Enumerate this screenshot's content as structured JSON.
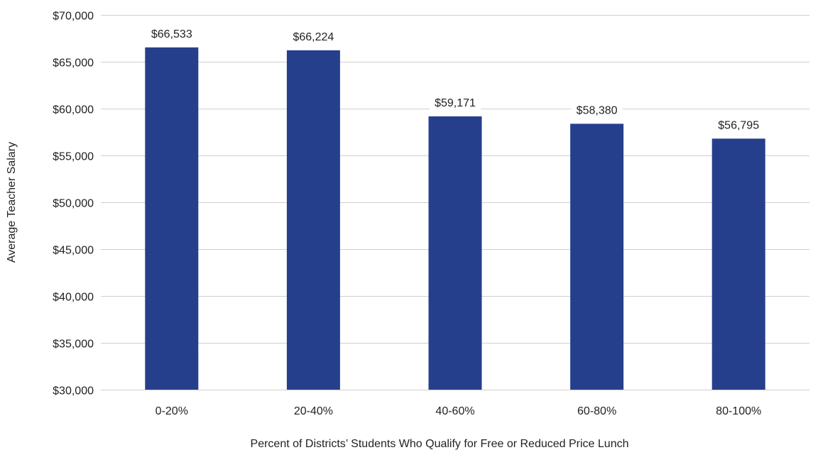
{
  "chart_data": {
    "type": "bar",
    "title": "",
    "xlabel": "Percent of Districts’ Students Who Qualify for Free or Reduced Price Lunch",
    "ylabel": "Average Teacher Salary",
    "categories": [
      "0-20%",
      "20-40%",
      "40-60%",
      "60-80%",
      "80-100%"
    ],
    "values": [
      66533,
      66224,
      59171,
      58380,
      56795
    ],
    "data_labels": [
      "$66,533",
      "$66,224",
      "$59,171",
      "$58,380",
      "$56,795"
    ],
    "ylim": [
      30000,
      70000
    ],
    "yticks": [
      30000,
      35000,
      40000,
      45000,
      50000,
      55000,
      60000,
      65000,
      70000
    ],
    "ytick_labels": [
      "$30,000",
      "$35,000",
      "$40,000",
      "$45,000",
      "$50,000",
      "$55,000",
      "$60,000",
      "$65,000",
      "$70,000"
    ],
    "grid": true,
    "legend": "none",
    "colors": {
      "bar": "#263f8c",
      "grid": "#cfcfcf",
      "text": "#222222"
    }
  }
}
